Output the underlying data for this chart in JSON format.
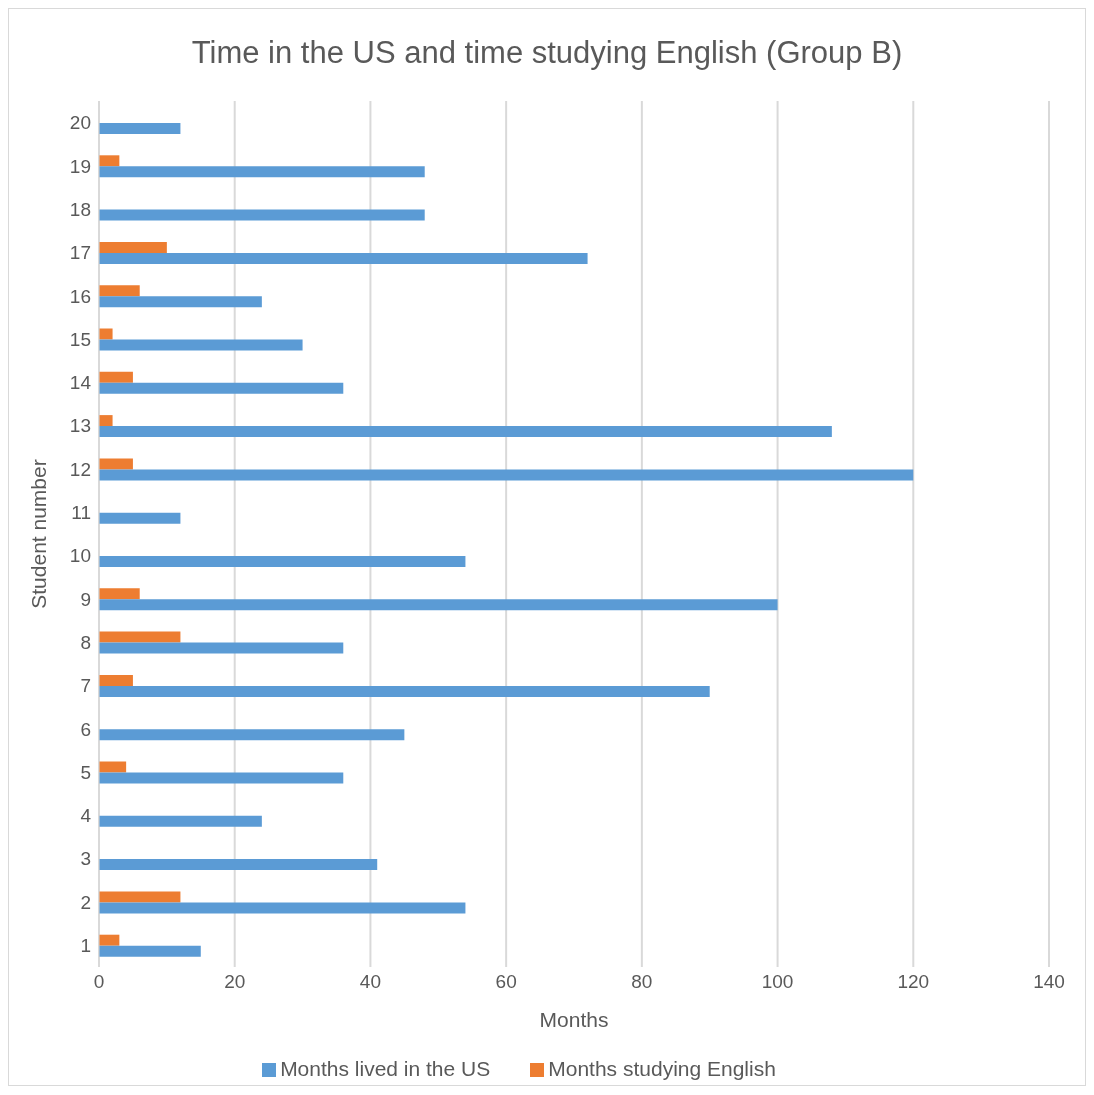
{
  "chart_data": {
    "type": "bar",
    "orientation": "horizontal",
    "title": "Time in the US and time studying English (Group B)",
    "xlabel": "Months",
    "ylabel": "Student number",
    "categories": [
      "20",
      "19",
      "18",
      "17",
      "16",
      "15",
      "14",
      "13",
      "12",
      "11",
      "10",
      "9",
      "8",
      "7",
      "6",
      "5",
      "4",
      "3",
      "2",
      "1"
    ],
    "series": [
      {
        "name": "Months studying English",
        "color": "#ed7d31",
        "values": [
          0,
          3,
          0,
          10,
          6,
          2,
          5,
          2,
          5,
          0,
          0,
          6,
          12,
          5,
          0,
          4,
          0,
          0,
          12,
          3
        ]
      },
      {
        "name": "Months lived in the US",
        "color": "#5b9bd5",
        "values": [
          12,
          48,
          48,
          72,
          24,
          30,
          36,
          108,
          120,
          12,
          54,
          100,
          36,
          90,
          45,
          36,
          24,
          41,
          54,
          15
        ]
      }
    ],
    "xlim": [
      0,
      140
    ],
    "xticks": [
      0,
      20,
      40,
      60,
      80,
      100,
      120,
      140
    ],
    "grid": "x",
    "legend": "bottom"
  }
}
